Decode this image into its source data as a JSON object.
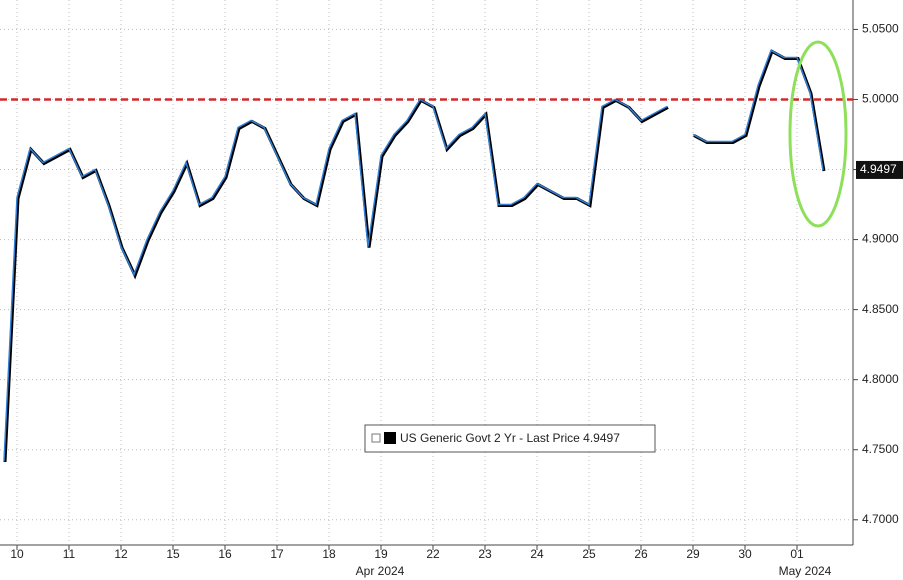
{
  "chart_data": {
    "type": "line",
    "categories": [
      null,
      "10",
      null,
      null,
      null,
      "11",
      null,
      null,
      null,
      "12",
      null,
      null,
      null,
      "15",
      null,
      null,
      null,
      "16",
      null,
      null,
      null,
      "17",
      null,
      null,
      null,
      "18",
      null,
      null,
      null,
      "19",
      null,
      null,
      null,
      "22",
      null,
      null,
      null,
      "23",
      null,
      null,
      null,
      "24",
      null,
      null,
      null,
      "25",
      null,
      null,
      null,
      "26",
      null,
      null,
      null,
      "29",
      null,
      null,
      null,
      "30",
      null,
      null,
      null,
      "01",
      null,
      null
    ],
    "month_labels": [
      "Apr 2024",
      "May 2024"
    ],
    "series": [
      {
        "name": "US Generic Govt 2 Yr - Last Price 4.9497",
        "color": "#2f7fd6",
        "values": [
          4.742,
          4.93,
          4.965,
          4.955,
          4.96,
          4.965,
          4.945,
          4.95,
          4.925,
          4.895,
          4.875,
          4.9,
          4.92,
          4.935,
          4.955,
          4.925,
          4.93,
          4.945,
          4.98,
          4.985,
          4.98,
          4.96,
          4.94,
          4.93,
          4.925,
          4.965,
          4.985,
          4.99,
          4.895,
          4.96,
          4.975,
          4.985,
          5.0,
          4.995,
          4.965,
          4.975,
          4.98,
          4.99,
          4.925,
          4.925,
          4.93,
          4.94,
          4.935,
          4.93,
          4.93,
          4.925,
          4.995,
          5.0,
          4.995,
          4.985,
          4.99,
          4.995,
          null,
          4.975,
          4.97,
          4.97,
          4.97,
          4.975,
          5.01,
          5.035,
          5.03,
          5.03,
          5.005,
          4.9497
        ]
      }
    ],
    "ylim": [
      4.682,
      5.071
    ],
    "yticks": [
      {
        "value": 4.7,
        "label": "4.7000"
      },
      {
        "value": 4.75,
        "label": "4.7500"
      },
      {
        "value": 4.8,
        "label": "4.8000"
      },
      {
        "value": 4.85,
        "label": "4.8500"
      },
      {
        "value": 4.9,
        "label": "4.9000"
      },
      {
        "value": 4.95,
        "label": "4.9500"
      },
      {
        "value": 5.0,
        "label": "5.0000"
      },
      {
        "value": 5.05,
        "label": "5.0500"
      }
    ],
    "reference_line": {
      "value": 5.0,
      "color": "#d42a2a"
    },
    "grid": true
  }
}
